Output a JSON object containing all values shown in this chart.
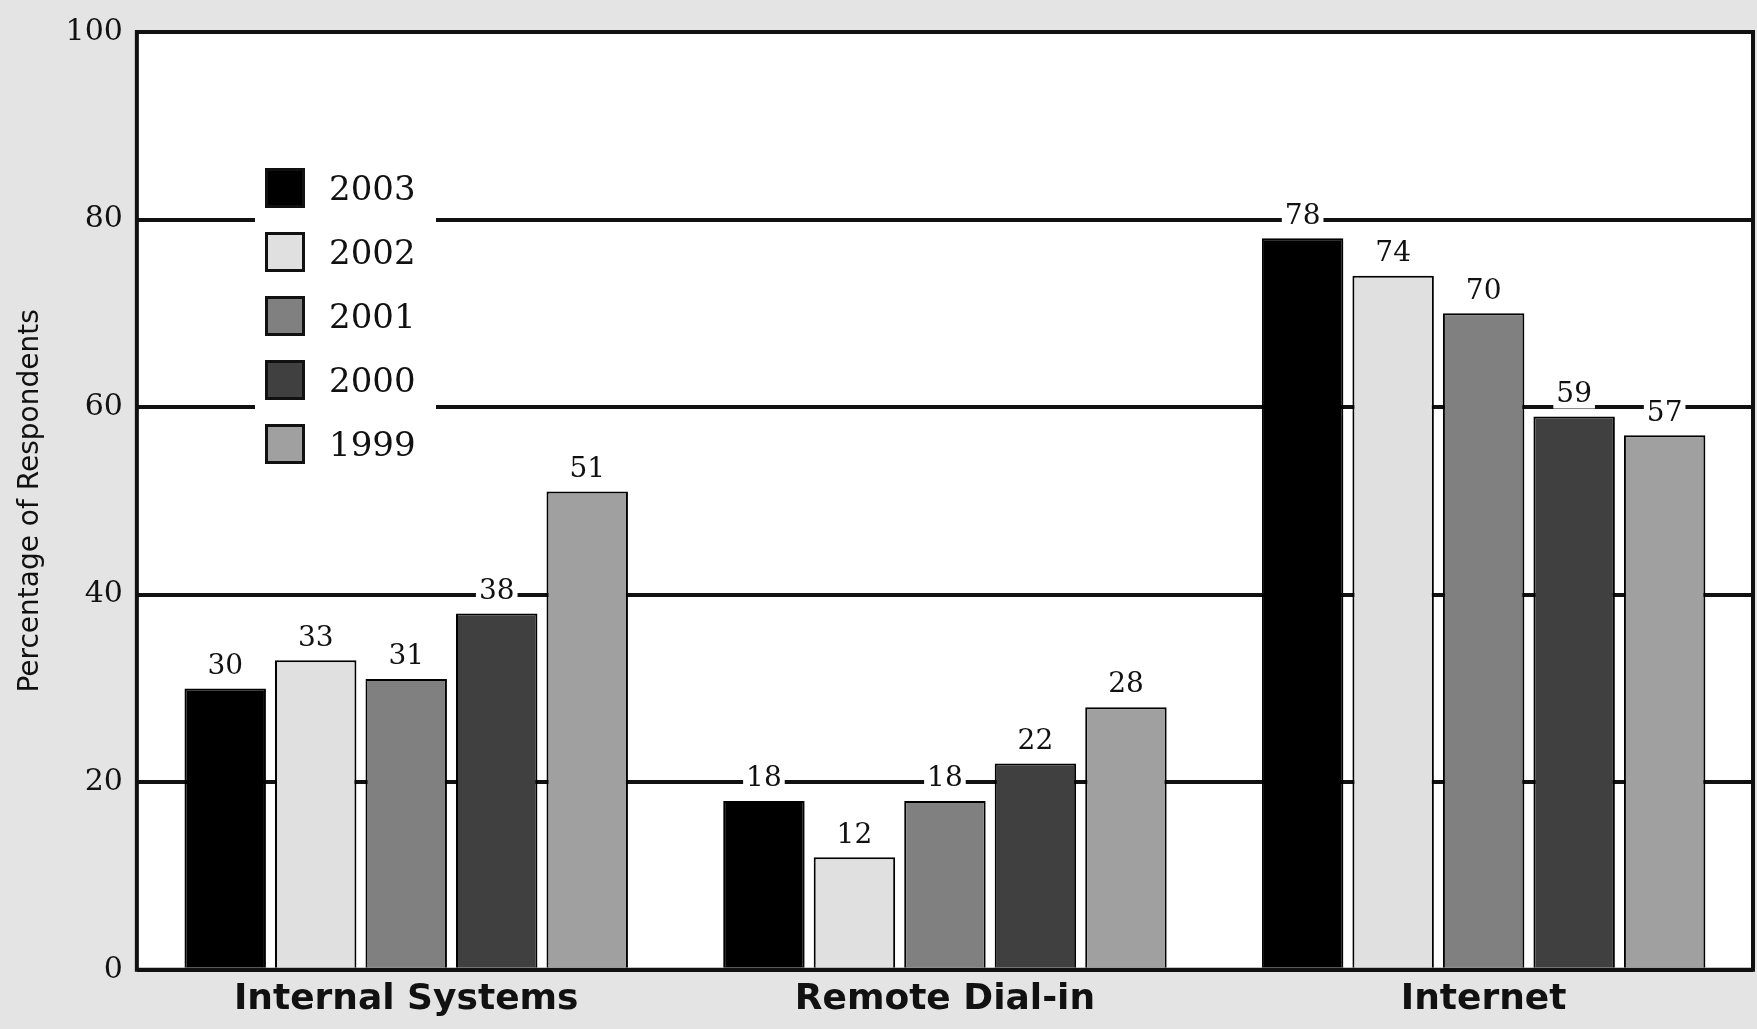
{
  "chart_data": {
    "type": "bar",
    "ylabel": "Percentage of Respondents",
    "categories": [
      "Internal Systems",
      "Remote Dial-in",
      "Internet"
    ],
    "series": [
      {
        "name": "2003",
        "color": "#000000",
        "values": [
          30,
          18,
          78
        ]
      },
      {
        "name": "2002",
        "color": "#e0e0e0",
        "values": [
          33,
          12,
          74
        ]
      },
      {
        "name": "2001",
        "color": "#808080",
        "values": [
          31,
          18,
          70
        ]
      },
      {
        "name": "2000",
        "color": "#404040",
        "values": [
          38,
          22,
          59
        ]
      },
      {
        "name": "1999",
        "color": "#a0a0a0",
        "values": [
          51,
          28,
          57
        ]
      }
    ],
    "ylim": [
      0,
      100
    ],
    "yticks": [
      0,
      20,
      40,
      60,
      80,
      100
    ],
    "grid": "y",
    "legend": "top left",
    "data_labels": true
  }
}
